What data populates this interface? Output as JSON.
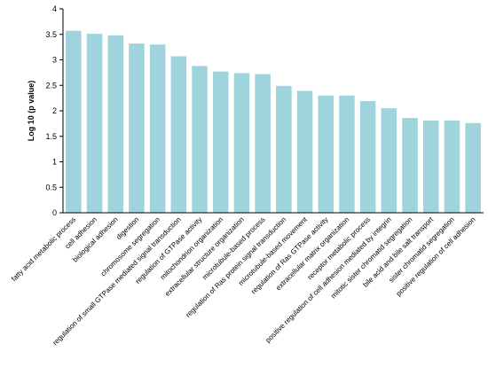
{
  "chart_data": {
    "type": "bar",
    "title": "",
    "xlabel": "",
    "ylabel": "Log 10 (p value)",
    "ylim": [
      0,
      4
    ],
    "yticks": [
      "0",
      "0.5",
      "1",
      "1.5",
      "2",
      "2.5",
      "3",
      "3.5",
      "4"
    ],
    "grid": false,
    "bar_color": "#9fd4dd",
    "categories": [
      "fatty acid metabolic process",
      "cell adhesion",
      "biological adhesion",
      "digestion",
      "chromosome segregation",
      "regulation of small GTPase mediated signal transduction",
      "regulation of GTPase activity",
      "mitochondrion organization",
      "extracellular structure organization",
      "microtubule-based process",
      "regulation of Ras protein signal transduction",
      "microtubule-based movement",
      "regulation of Ras GTPase activity",
      "extracellular matrix organization",
      "receptor metabolic process",
      "positive regulation of cell adhesion mediated by integrin",
      "mitotic sister chromatid segregation",
      "bile acid and bile salt transport",
      "sister chromatid segregation",
      "positive regulation of cell adhesion"
    ],
    "values": [
      3.57,
      3.51,
      3.48,
      3.32,
      3.3,
      3.07,
      2.88,
      2.77,
      2.74,
      2.72,
      2.49,
      2.39,
      2.3,
      2.3,
      2.19,
      2.05,
      1.86,
      1.81,
      1.81,
      1.76
    ]
  }
}
